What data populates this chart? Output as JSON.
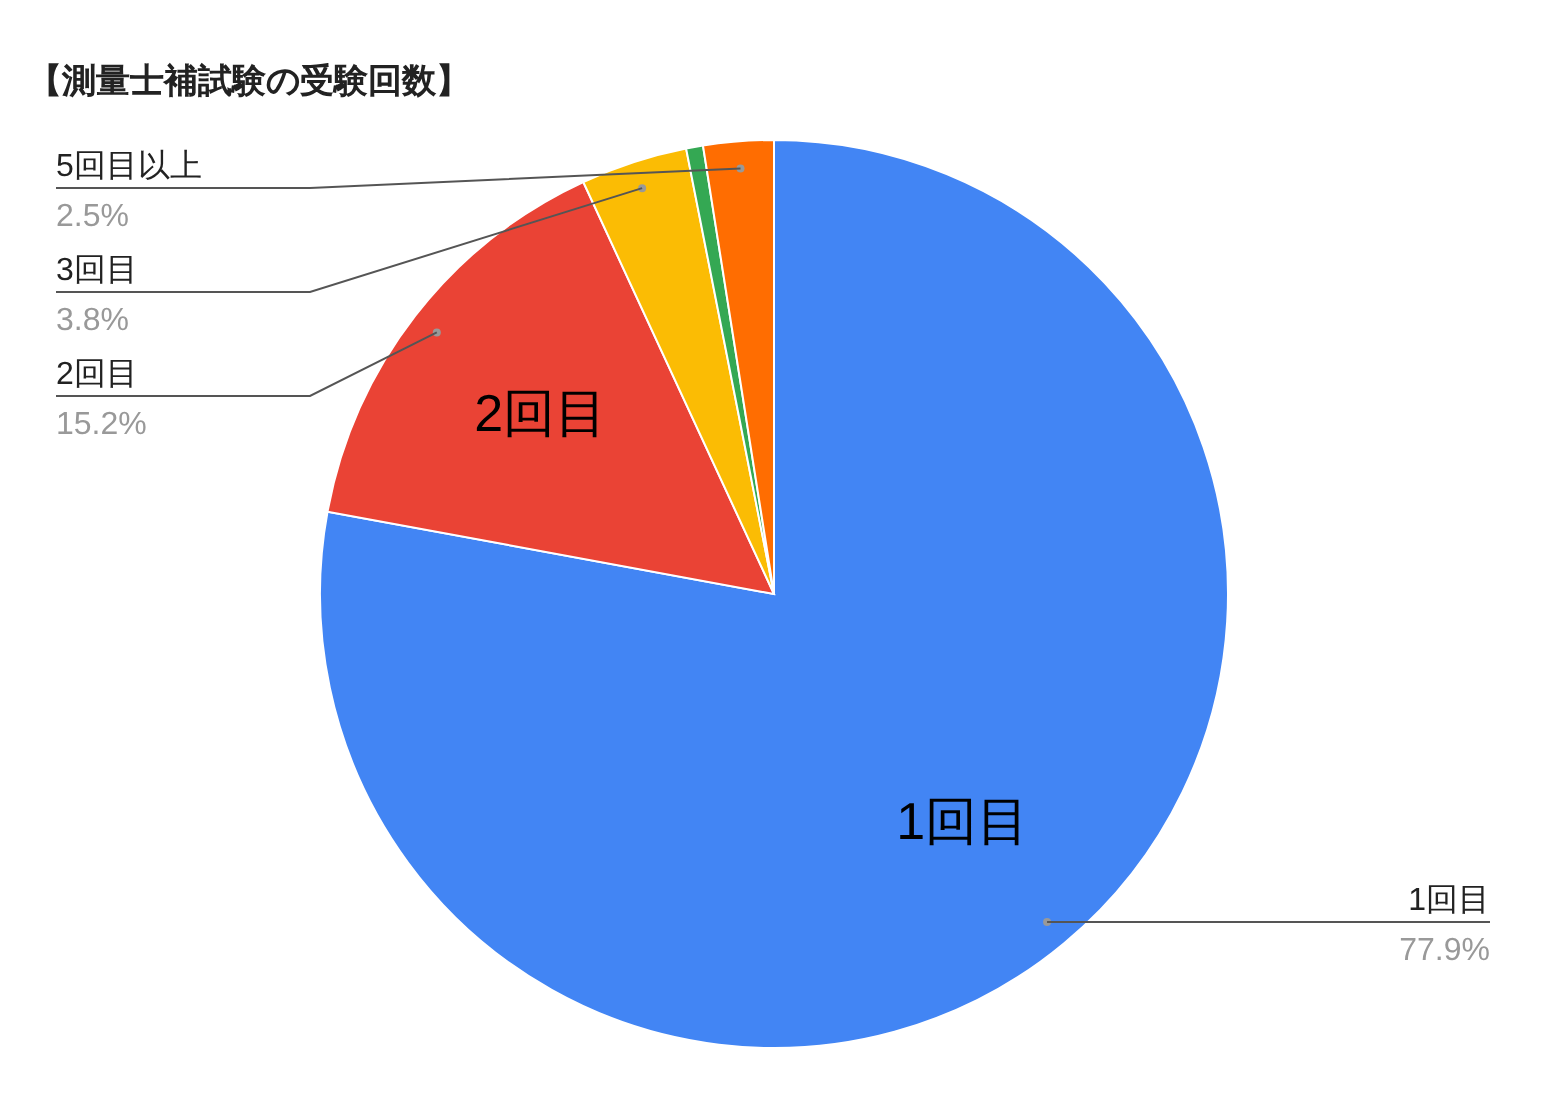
{
  "chart_data": {
    "type": "pie",
    "title": "【測量士補試験の受験回数】",
    "categories": [
      "1回目",
      "2回目",
      "3回目",
      null,
      "5回目以上"
    ],
    "values": [
      77.9,
      15.2,
      3.8,
      0.6,
      2.5
    ],
    "colors": [
      "#4285f4",
      "#ea4335",
      "#fbbc04",
      "#34a853",
      "#ff6d01"
    ],
    "value_labels": [
      "77.9%",
      "15.2%",
      "3.8%",
      null,
      "2.5%"
    ]
  }
}
